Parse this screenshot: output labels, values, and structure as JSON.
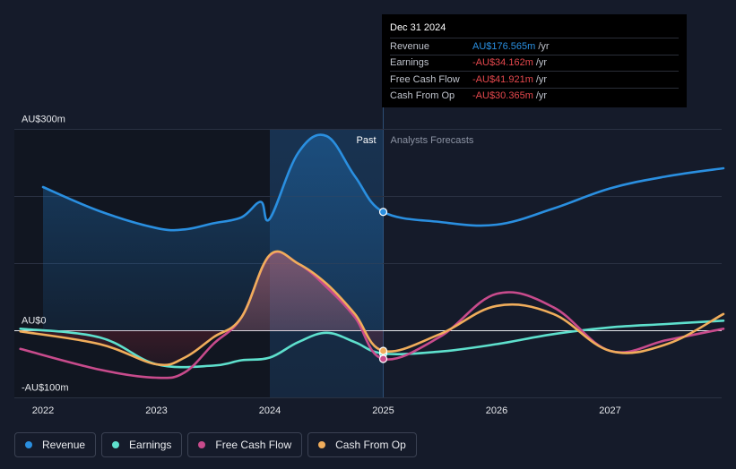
{
  "chart_data": {
    "type": "line",
    "x_unit": "year",
    "x_ticks": [
      "2022",
      "2023",
      "2024",
      "2025",
      "2026",
      "2027"
    ],
    "y_labels": [
      "AU$300m",
      "AU$0",
      "-AU$100m"
    ],
    "ylim": [
      -100,
      300
    ],
    "past_label": "Past",
    "forecast_label": "Analysts Forecasts",
    "divider_x": 2025.0,
    "series": [
      {
        "name": "Revenue",
        "color": "#2a8fe0",
        "points": [
          [
            2022.0,
            214
          ],
          [
            2022.5,
            178
          ],
          [
            2023.0,
            153
          ],
          [
            2023.25,
            151
          ],
          [
            2023.5,
            160
          ],
          [
            2023.75,
            169
          ],
          [
            2023.92,
            192
          ],
          [
            2024.0,
            167
          ],
          [
            2024.25,
            265
          ],
          [
            2024.5,
            290
          ],
          [
            2024.75,
            230
          ],
          [
            2025.0,
            177
          ],
          [
            2025.5,
            162
          ],
          [
            2026.0,
            158
          ],
          [
            2026.5,
            182
          ],
          [
            2027.0,
            212
          ],
          [
            2027.5,
            230
          ],
          [
            2028.0,
            242
          ]
        ]
      },
      {
        "name": "Earnings",
        "color": "#5ee0cd",
        "points": [
          [
            2021.8,
            3
          ],
          [
            2022.5,
            -10
          ],
          [
            2023.0,
            -50
          ],
          [
            2023.5,
            -52
          ],
          [
            2023.75,
            -44
          ],
          [
            2024.0,
            -40
          ],
          [
            2024.25,
            -17
          ],
          [
            2024.5,
            -3
          ],
          [
            2024.75,
            -17
          ],
          [
            2025.0,
            -34
          ],
          [
            2025.5,
            -31
          ],
          [
            2026.0,
            -20
          ],
          [
            2026.5,
            -5
          ],
          [
            2027.0,
            5
          ],
          [
            2027.5,
            10
          ],
          [
            2028.0,
            15
          ]
        ]
      },
      {
        "name": "Free Cash Flow",
        "color": "#c84b8c",
        "points": [
          [
            2021.8,
            -27
          ],
          [
            2022.5,
            -58
          ],
          [
            2023.0,
            -70
          ],
          [
            2023.25,
            -62
          ],
          [
            2023.5,
            -20
          ],
          [
            2023.75,
            20
          ],
          [
            2024.0,
            112
          ],
          [
            2024.25,
            100
          ],
          [
            2024.5,
            65
          ],
          [
            2024.75,
            20
          ],
          [
            2025.0,
            -42
          ],
          [
            2025.5,
            -9
          ],
          [
            2026.0,
            55
          ],
          [
            2026.5,
            35
          ],
          [
            2027.0,
            -30
          ],
          [
            2027.5,
            -14
          ],
          [
            2028.0,
            3
          ]
        ]
      },
      {
        "name": "Cash From Op",
        "color": "#f0ad5b",
        "points": [
          [
            2021.8,
            -1
          ],
          [
            2022.5,
            -20
          ],
          [
            2023.0,
            -50
          ],
          [
            2023.25,
            -40
          ],
          [
            2023.5,
            -10
          ],
          [
            2023.75,
            20
          ],
          [
            2024.0,
            113
          ],
          [
            2024.25,
            100
          ],
          [
            2024.5,
            70
          ],
          [
            2024.75,
            25
          ],
          [
            2025.0,
            -30
          ],
          [
            2025.5,
            -5
          ],
          [
            2026.0,
            37
          ],
          [
            2026.5,
            25
          ],
          [
            2027.0,
            -30
          ],
          [
            2027.5,
            -20
          ],
          [
            2028.0,
            25
          ]
        ]
      }
    ],
    "markers": [
      {
        "series": "Revenue",
        "x": 2025.0,
        "y": 177
      },
      {
        "series": "Earnings",
        "x": 2025.0,
        "y": -34
      },
      {
        "series": "Free Cash Flow",
        "x": 2025.0,
        "y": -42
      },
      {
        "series": "Cash From Op",
        "x": 2025.0,
        "y": -30
      }
    ]
  },
  "tooltip": {
    "date": "Dec 31 2024",
    "rows": [
      {
        "label": "Revenue",
        "value": "AU$176.565m",
        "unit": "/yr",
        "color": "#2a8fe0"
      },
      {
        "label": "Earnings",
        "value": "-AU$34.162m",
        "unit": "/yr",
        "color": "#e5484d"
      },
      {
        "label": "Free Cash Flow",
        "value": "-AU$41.921m",
        "unit": "/yr",
        "color": "#e5484d"
      },
      {
        "label": "Cash From Op",
        "value": "-AU$30.365m",
        "unit": "/yr",
        "color": "#e5484d"
      }
    ]
  },
  "legend": [
    {
      "label": "Revenue",
      "color": "#2a8fe0"
    },
    {
      "label": "Earnings",
      "color": "#5ee0cd"
    },
    {
      "label": "Free Cash Flow",
      "color": "#c84b8c"
    },
    {
      "label": "Cash From Op",
      "color": "#f0ad5b"
    }
  ]
}
